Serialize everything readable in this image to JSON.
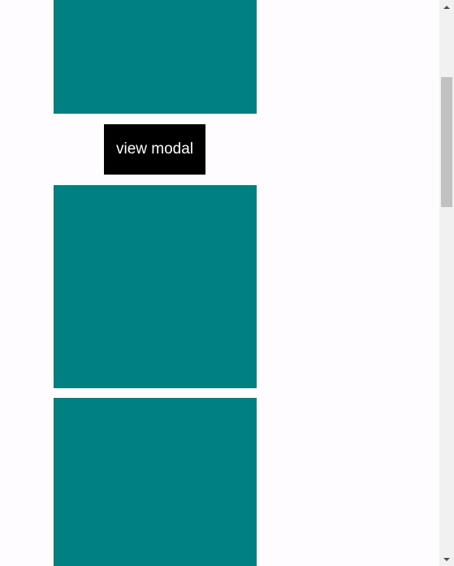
{
  "main": {
    "modal_button_label": "view modal"
  },
  "colors": {
    "block": "#008080",
    "button_bg": "#000000",
    "button_text": "#ffffff",
    "page_bg": "#fefcff"
  },
  "scrollbar": {
    "up_icon": "scroll-up-arrow-icon",
    "down_icon": "scroll-down-arrow-icon"
  }
}
